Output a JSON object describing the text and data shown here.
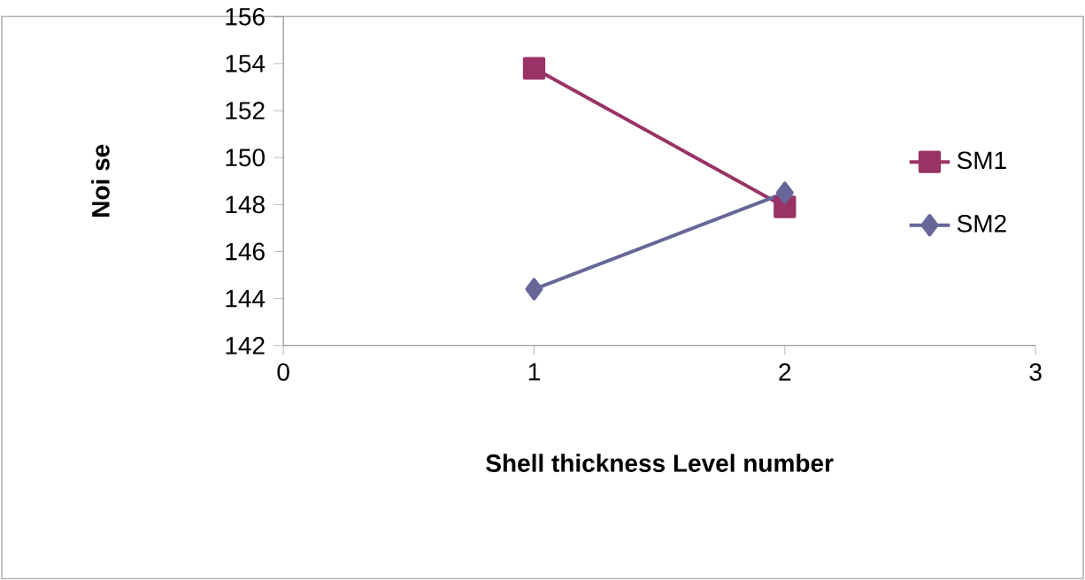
{
  "chart_data": {
    "type": "line",
    "xlabel": "Shell thickness Level number",
    "ylabel": "Noi se",
    "x": [
      1,
      2
    ],
    "series": [
      {
        "name": "SM1",
        "color": "#993366",
        "marker": "square",
        "values": [
          153.8,
          147.9
        ]
      },
      {
        "name": "SM2",
        "color": "#666699",
        "marker": "diamond",
        "values": [
          144.4,
          148.5
        ]
      }
    ],
    "xlim": [
      0,
      3
    ],
    "xticks": [
      0,
      1,
      2,
      3
    ],
    "ylim": [
      142,
      156
    ],
    "yticks": [
      142,
      144,
      146,
      148,
      150,
      152,
      154,
      156
    ],
    "grid": false,
    "legend": "right"
  }
}
